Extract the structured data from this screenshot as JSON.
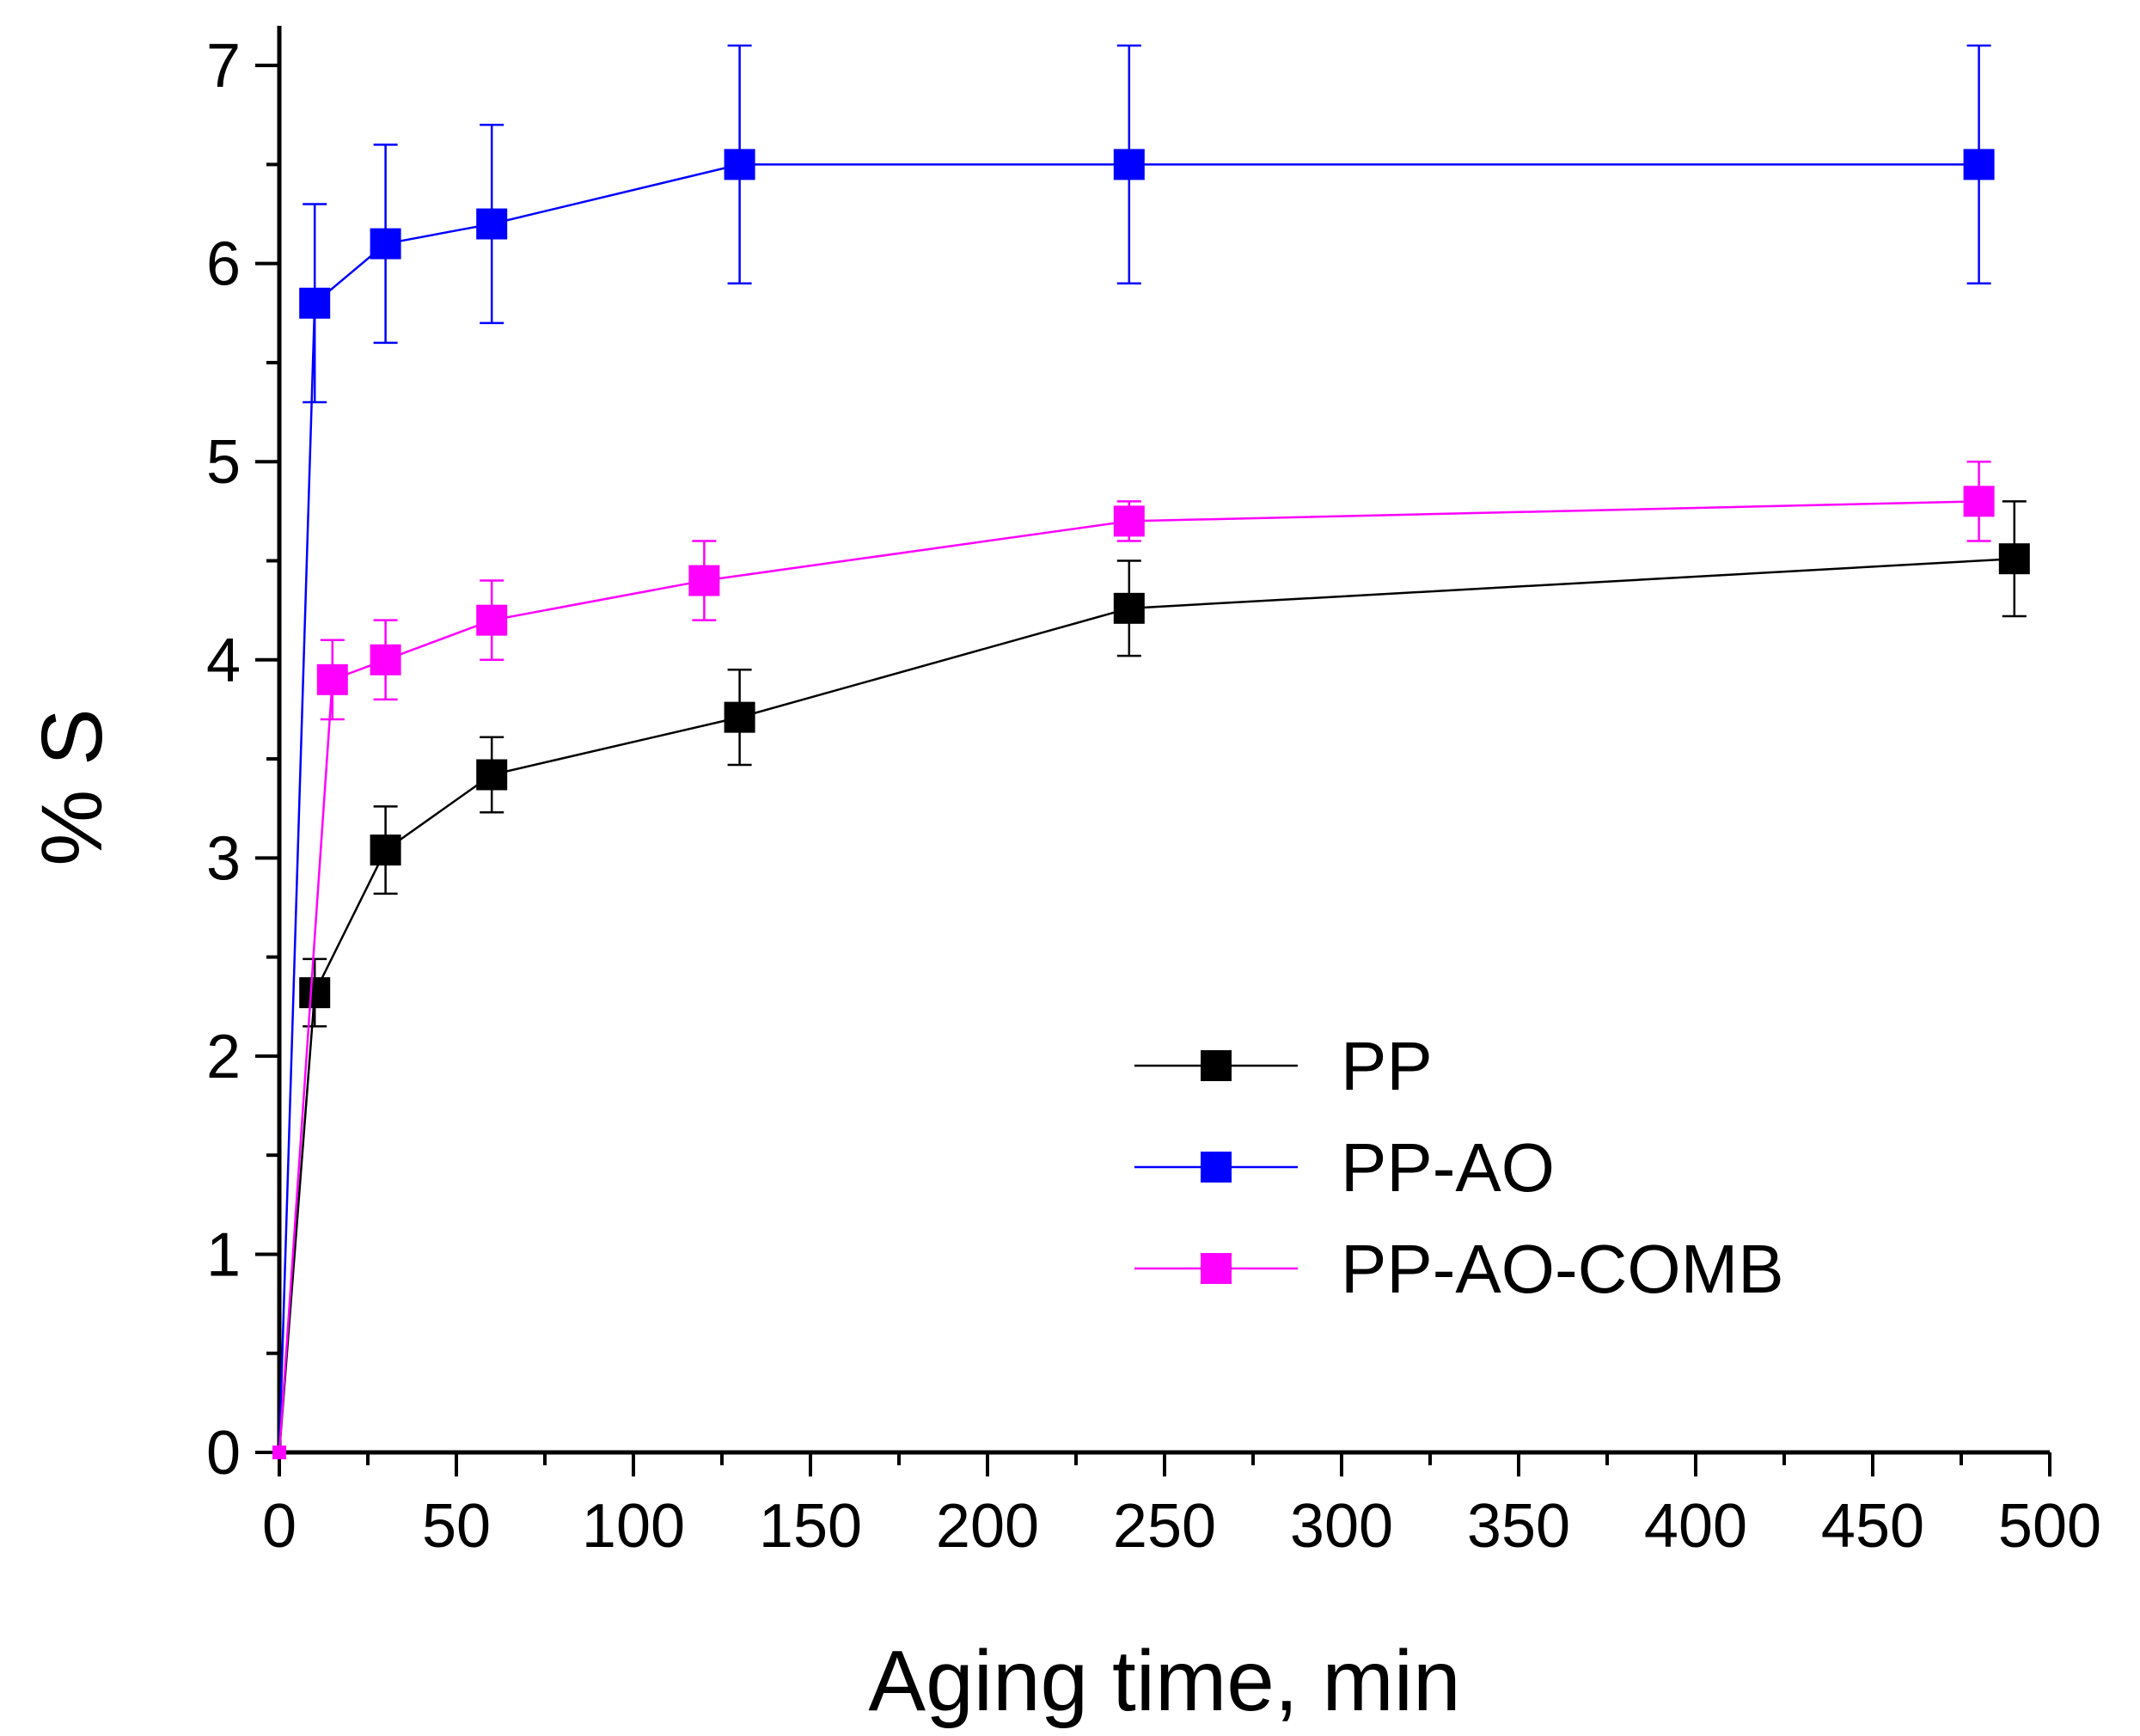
{
  "chart_data": {
    "type": "line",
    "title": "",
    "xlabel": "Aging time, min",
    "ylabel": "% S",
    "xlim": [
      0,
      500
    ],
    "ylim": [
      0,
      7.2
    ],
    "xticks": [
      0,
      50,
      100,
      150,
      200,
      250,
      300,
      350,
      400,
      450,
      500
    ],
    "yticks": [
      0,
      1,
      2,
      3,
      4,
      5,
      6,
      7
    ],
    "grid": false,
    "legend_position": "bottom-right",
    "series": [
      {
        "name": "PP",
        "color": "#000000",
        "x": [
          0,
          10,
          30,
          60,
          130,
          240,
          490
        ],
        "y": [
          0,
          2.32,
          3.04,
          3.42,
          3.71,
          4.26,
          4.51
        ],
        "err": [
          0,
          0.17,
          0.22,
          0.19,
          0.24,
          0.24,
          0.29
        ]
      },
      {
        "name": "PP-AO",
        "color": "#0000ff",
        "x": [
          0,
          10,
          30,
          60,
          130,
          240,
          480
        ],
        "y": [
          0,
          5.8,
          6.1,
          6.2,
          6.5,
          6.5,
          6.5
        ],
        "err": [
          0,
          0.5,
          0.5,
          0.5,
          0.6,
          0.6,
          0.6
        ]
      },
      {
        "name": "PP-AO-COMB",
        "color": "#ff00ff",
        "x": [
          0,
          15,
          30,
          60,
          120,
          240,
          480
        ],
        "y": [
          0,
          3.9,
          4.0,
          4.2,
          4.4,
          4.7,
          4.8
        ],
        "err": [
          0,
          0.2,
          0.2,
          0.2,
          0.2,
          0.1,
          0.2
        ]
      }
    ]
  }
}
